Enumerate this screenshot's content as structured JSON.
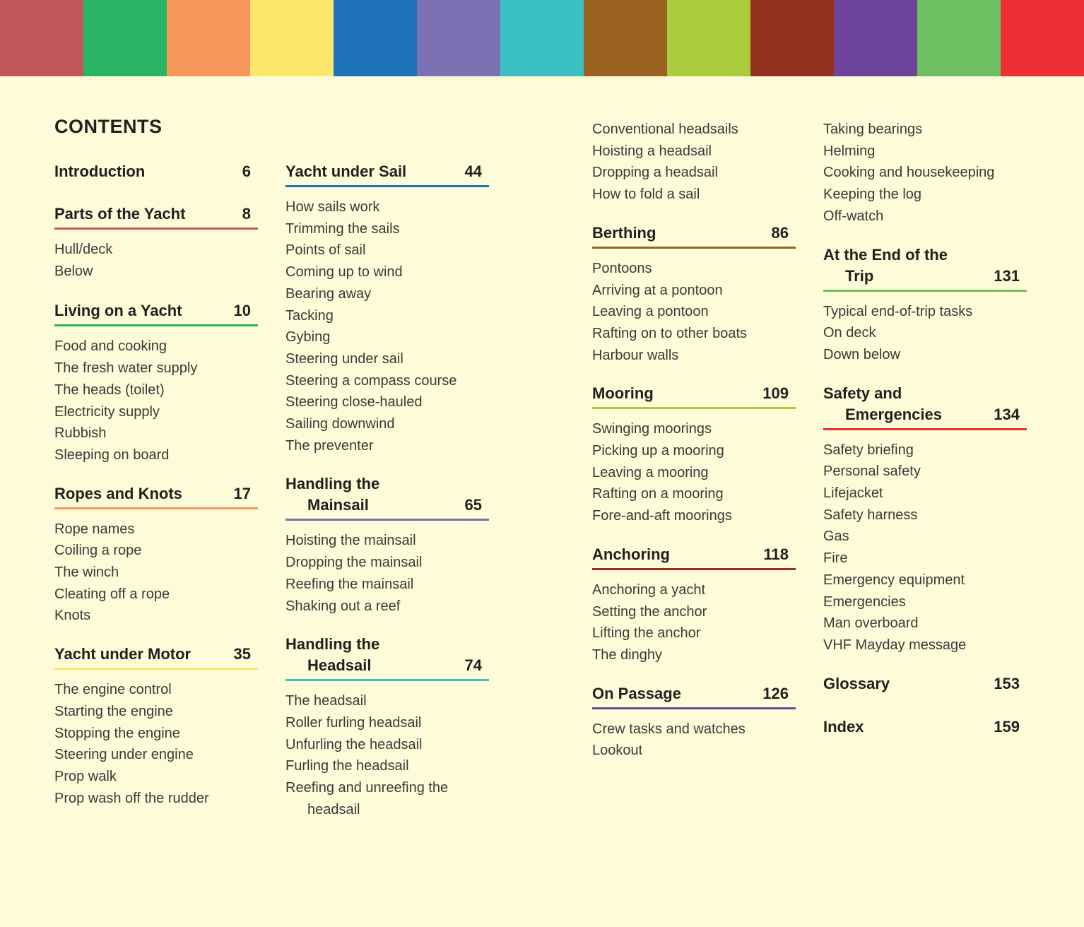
{
  "colors": [
    "#c0585a",
    "#2bb463",
    "#f7975a",
    "#fde66c",
    "#1f73b8",
    "#7b71b3",
    "#39c0c2",
    "#9a6221",
    "#a9cb3c",
    "#93321f",
    "#6d449a",
    "#6fc062",
    "#ee3034"
  ],
  "title": "CONTENTS",
  "sections": {
    "intro": {
      "title": "Introduction",
      "page": "6",
      "color": "#fefbd8"
    },
    "parts": {
      "title": "Parts of the Yacht",
      "page": "8",
      "color": "#c0585a",
      "items": [
        "Hull/deck",
        "Below"
      ]
    },
    "living": {
      "title": "Living on a Yacht",
      "page": "10",
      "color": "#2bb463",
      "items": [
        "Food and cooking",
        "The fresh water supply",
        "The heads (toilet)",
        "Electricity supply",
        "Rubbish",
        "Sleeping on board"
      ]
    },
    "ropes": {
      "title": "Ropes and Knots",
      "page": "17",
      "color": "#f7975a",
      "items": [
        "Rope names",
        "Coiling a rope",
        "The winch",
        "Cleating off a rope",
        "Knots"
      ]
    },
    "motor": {
      "title": "Yacht under Motor",
      "page": "35",
      "color": "#fde66c",
      "items": [
        "The engine control",
        "Starting the engine",
        "Stopping the engine",
        "Steering under engine",
        "Prop walk",
        "Prop wash off the rudder"
      ]
    },
    "sail": {
      "title": "Yacht under Sail",
      "page": "44",
      "color": "#1f73b8",
      "items": [
        "How sails work",
        "Trimming the sails",
        "Points of sail",
        "Coming up to wind",
        "Bearing away",
        "Tacking",
        "Gybing",
        "Steering under sail",
        "Steering a compass course",
        "Steering close-hauled",
        "Sailing downwind",
        "The preventer"
      ]
    },
    "mainsail": {
      "title1": "Handling the",
      "title2": "Mainsail",
      "page": "65",
      "color": "#7b71b3",
      "items": [
        "Hoisting the mainsail",
        "Dropping the mainsail",
        "Reefing the mainsail",
        "Shaking out a reef"
      ]
    },
    "headsail": {
      "title1": "Handling the",
      "title2": "Headsail",
      "page": "74",
      "color": "#39c0c2",
      "items": [
        "The headsail",
        "Roller furling headsail",
        "Unfurling the headsail",
        "Furling the headsail",
        "Reefing and unreefing the"
      ],
      "item_cont": "headsail"
    },
    "headsail_cont": {
      "items": [
        "Conventional headsails",
        "Hoisting a headsail",
        "Dropping a headsail",
        "How to fold a sail"
      ]
    },
    "berthing": {
      "title": "Berthing",
      "page": "86",
      "color": "#9a6221",
      "items": [
        "Pontoons",
        "Arriving at a pontoon",
        "Leaving a pontoon",
        "Rafting on to other boats",
        "Harbour walls"
      ]
    },
    "mooring": {
      "title": "Mooring",
      "page": "109",
      "color": "#a9cb3c",
      "items": [
        "Swinging moorings",
        "Picking up a mooring",
        "Leaving a mooring",
        "Rafting on a mooring",
        "Fore-and-aft moorings"
      ]
    },
    "anchoring": {
      "title": "Anchoring",
      "page": "118",
      "color": "#93321f",
      "items": [
        "Anchoring a yacht",
        "Setting the anchor",
        "Lifting the anchor",
        "The dinghy"
      ]
    },
    "passage": {
      "title": "On Passage",
      "page": "126",
      "color": "#6d449a",
      "items": [
        "Crew tasks and watches",
        "Lookout"
      ]
    },
    "passage_cont": {
      "items": [
        "Taking bearings",
        "Helming",
        "Cooking and housekeeping",
        "Keeping the log",
        "Off-watch"
      ]
    },
    "end": {
      "title1": "At the End of the",
      "title2": "Trip",
      "page": "131",
      "color": "#6fc062",
      "items": [
        "Typical end-of-trip tasks",
        "On deck",
        "Down below"
      ]
    },
    "safety": {
      "title1": "Safety and",
      "title2": "Emergencies",
      "page": "134",
      "color": "#ee3034",
      "items": [
        "Safety briefing",
        "Personal safety",
        "Lifejacket",
        "Safety harness",
        "Gas",
        "Fire",
        "Emergency equipment",
        "Emergencies",
        "Man overboard",
        "VHF Mayday message"
      ]
    },
    "glossary": {
      "title": "Glossary",
      "page": "153"
    },
    "index": {
      "title": "Index",
      "page": "159"
    }
  }
}
